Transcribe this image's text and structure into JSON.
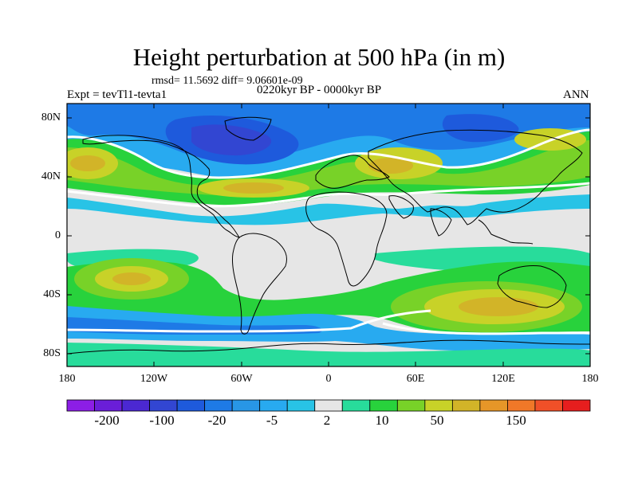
{
  "title": "Height perturbation at 500 hPa (in m)",
  "stats": "rmsd= 11.5692 diff= 9.06601e-09",
  "period": "0220kyr BP - 0000kyr BP",
  "experiment": "Expt = tevTl1-tevta1",
  "season": "ANN",
  "map": {
    "lat_labels": [
      "80N",
      "40N",
      "0",
      "40S",
      "80S"
    ],
    "lon_labels": [
      "180",
      "120W",
      "60W",
      "0",
      "60E",
      "120E",
      "180"
    ]
  },
  "colorbar": {
    "colors": [
      "#8c1ee6",
      "#6a1ed8",
      "#4b28d2",
      "#3246d2",
      "#1e5adc",
      "#1e7ae6",
      "#2896e6",
      "#28aaf0",
      "#28c3e6",
      "#e6e6e6",
      "#28dc9b",
      "#28d23c",
      "#78d228",
      "#c8d228",
      "#d2b428",
      "#e69628",
      "#f07828",
      "#f05028",
      "#e61e1e"
    ],
    "labels": [
      "-200",
      "-100",
      "-20",
      "-5",
      "2",
      "10",
      "50",
      "150"
    ]
  }
}
